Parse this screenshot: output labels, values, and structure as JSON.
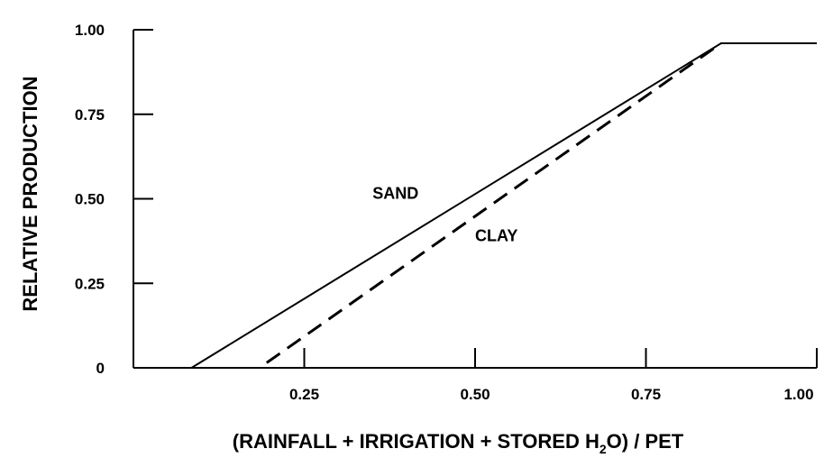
{
  "chart_data": {
    "type": "line",
    "title": "",
    "xlabel": {
      "prefix": "(RAINFALL + IRRIGATION + STORED H",
      "subscript": "2",
      "suffix": "O) / PET"
    },
    "ylabel": "RELATIVE PRODUCTION",
    "xlim": [
      0,
      1.0
    ],
    "ylim": [
      0,
      1.0
    ],
    "x_ticks": [
      {
        "value": 0.25,
        "label": "0.25"
      },
      {
        "value": 0.5,
        "label": "0.50"
      },
      {
        "value": 0.75,
        "label": "0.75"
      },
      {
        "value": 1.0,
        "label": "1.00"
      }
    ],
    "y_ticks": [
      {
        "value": 0,
        "label": "0"
      },
      {
        "value": 0.25,
        "label": "0.25"
      },
      {
        "value": 0.5,
        "label": "0.50"
      },
      {
        "value": 0.75,
        "label": "0.75"
      },
      {
        "value": 1.0,
        "label": "1.00"
      }
    ],
    "grid": false,
    "series": [
      {
        "name": "SAND",
        "style": "solid",
        "color": "#000000",
        "points": [
          [
            0.085,
            0
          ],
          [
            0.86,
            0.96
          ],
          [
            1.0,
            0.96
          ]
        ],
        "label_at": [
          0.35,
          0.5
        ]
      },
      {
        "name": "CLAY",
        "style": "dashed",
        "color": "#000000",
        "points": [
          [
            0.195,
            0.015
          ],
          [
            0.86,
            0.96
          ]
        ],
        "label_at": [
          0.5,
          0.375
        ]
      }
    ]
  }
}
